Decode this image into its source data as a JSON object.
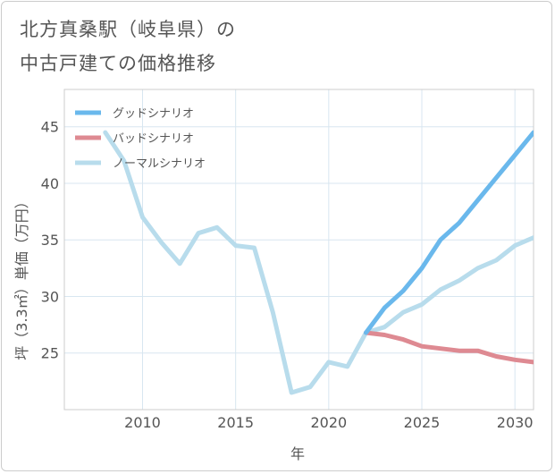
{
  "title": {
    "line1": "北方真桑駅（岐阜県）の",
    "line2": "中古戸建ての価格推移"
  },
  "chart_data": {
    "type": "line",
    "xlabel": "年",
    "ylabel": "坪（3.3㎡）単価（万円）",
    "xlim": [
      2005.8,
      2031
    ],
    "ylim": [
      20,
      48.3
    ],
    "xticks": [
      2010,
      2015,
      2020,
      2025,
      2030
    ],
    "yticks": [
      25,
      30,
      35,
      40,
      45
    ],
    "xtick_labels": [
      "2010",
      "2015",
      "2020",
      "2025",
      "2030"
    ],
    "ytick_labels": [
      "25",
      "30",
      "35",
      "40",
      "45"
    ],
    "grid": true,
    "legend_position": "top-left",
    "series": [
      {
        "key": "good",
        "name": "グッドシナリオ",
        "color": "#6ab8ec",
        "x": [
          2022,
          2023,
          2024,
          2025,
          2026,
          2027,
          2028,
          2029,
          2030,
          2031
        ],
        "values": [
          26.8,
          29.0,
          30.5,
          32.5,
          35.0,
          36.5,
          38.5,
          40.5,
          42.5,
          44.5
        ]
      },
      {
        "key": "bad",
        "name": "バッドシナリオ",
        "color": "#de8a92",
        "x": [
          2022,
          2023,
          2024,
          2025,
          2026,
          2027,
          2028,
          2029,
          2030,
          2031
        ],
        "values": [
          26.8,
          26.6,
          26.2,
          25.6,
          25.4,
          25.2,
          25.2,
          24.7,
          24.4,
          24.2
        ]
      },
      {
        "key": "normal",
        "name": "ノーマルシナリオ",
        "color": "#b8dcec",
        "x": [
          2008,
          2009,
          2010,
          2011,
          2012,
          2013,
          2014,
          2015,
          2016,
          2017,
          2018,
          2019,
          2020,
          2021,
          2022,
          2023,
          2024,
          2025,
          2026,
          2027,
          2028,
          2029,
          2030,
          2031
        ],
        "values": [
          44.5,
          42.0,
          37.0,
          34.8,
          32.9,
          35.6,
          36.1,
          34.5,
          34.3,
          28.6,
          21.5,
          22.0,
          24.2,
          23.8,
          26.8,
          27.3,
          28.6,
          29.3,
          30.6,
          31.4,
          32.5,
          33.2,
          34.5,
          35.2
        ]
      }
    ]
  }
}
